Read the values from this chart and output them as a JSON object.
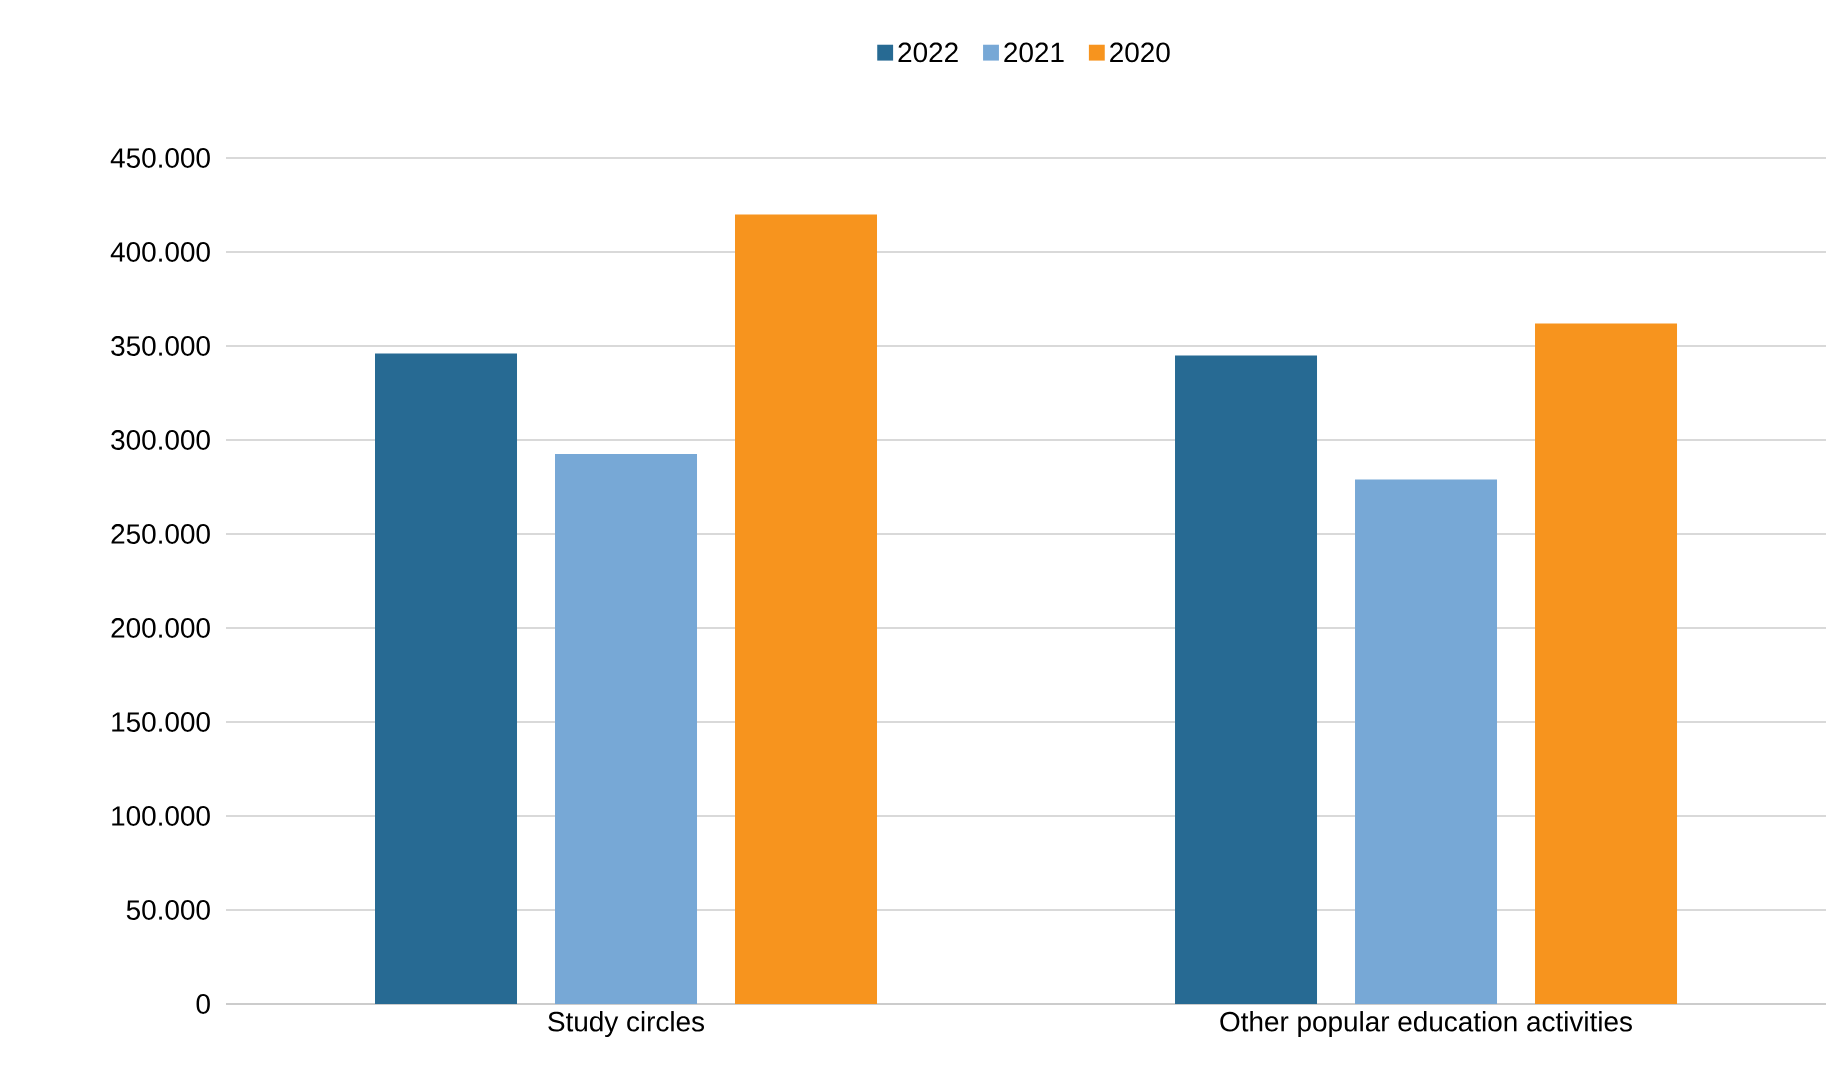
{
  "chart_data": {
    "type": "bar",
    "categories": [
      "Study circles",
      "Other popular education activities"
    ],
    "series": [
      {
        "name": "2022",
        "color": "#276a93",
        "values": [
          346000,
          345000
        ]
      },
      {
        "name": "2021",
        "color": "#77a8d6",
        "values": [
          292500,
          279000
        ]
      },
      {
        "name": "2020",
        "color": "#f7941e",
        "values": [
          420000,
          362000
        ]
      }
    ],
    "ylim": [
      0,
      450000
    ],
    "yticks": [
      {
        "value": 0,
        "label": "0"
      },
      {
        "value": 50000,
        "label": "50.000"
      },
      {
        "value": 100000,
        "label": "100.000"
      },
      {
        "value": 150000,
        "label": "150.000"
      },
      {
        "value": 200000,
        "label": "200.000"
      },
      {
        "value": 250000,
        "label": "250.000"
      },
      {
        "value": 300000,
        "label": "300.000"
      },
      {
        "value": 350000,
        "label": "350.000"
      },
      {
        "value": 400000,
        "label": "400.000"
      },
      {
        "value": 450000,
        "label": "450.000"
      }
    ],
    "grid": "y",
    "legend": "top"
  }
}
